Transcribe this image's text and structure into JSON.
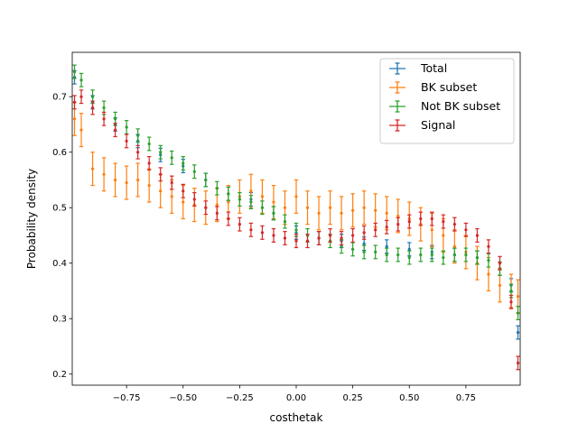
{
  "chart_data": {
    "type": "scatter",
    "title": "",
    "xlabel": "costhetak",
    "ylabel": "Probability density",
    "xlim": [
      -0.99,
      0.99
    ],
    "ylim": [
      0.18,
      0.78
    ],
    "xticks": [
      -0.75,
      -0.5,
      -0.25,
      0.0,
      0.25,
      0.5,
      0.75
    ],
    "xtick_labels": [
      "−0.75",
      "−0.50",
      "−0.25",
      "0.00",
      "0.25",
      "0.50",
      "0.75"
    ],
    "yticks": [
      0.2,
      0.3,
      0.4,
      0.5,
      0.6,
      0.7
    ],
    "ytick_labels": [
      "0.2",
      "0.3",
      "0.4",
      "0.5",
      "0.6",
      "0.7"
    ],
    "grid": false,
    "legend_position": "top-right",
    "error_bars": true,
    "x_bin_halfwidth": 0.005,
    "series": [
      {
        "name": "Total",
        "color": "#1f77b4",
        "x": [
          -0.98,
          -0.9,
          -0.8,
          -0.7,
          -0.6,
          -0.5,
          -0.4,
          -0.3,
          -0.2,
          -0.1,
          0.0,
          0.1,
          0.2,
          0.3,
          0.4,
          0.5,
          0.6,
          0.7,
          0.8,
          0.9,
          0.95,
          0.98
        ],
        "y": [
          0.735,
          0.69,
          0.65,
          0.62,
          0.595,
          0.575,
          0.55,
          0.525,
          0.515,
          0.49,
          0.455,
          0.445,
          0.44,
          0.435,
          0.43,
          0.425,
          0.42,
          0.415,
          0.41,
          0.39,
          0.36,
          0.275
        ],
        "err": [
          0.012,
          0.012,
          0.012,
          0.012,
          0.012,
          0.012,
          0.012,
          0.012,
          0.012,
          0.012,
          0.012,
          0.012,
          0.012,
          0.012,
          0.012,
          0.012,
          0.012,
          0.012,
          0.012,
          0.012,
          0.012,
          0.012
        ]
      },
      {
        "name": "BK subset",
        "color": "#ff7f0e",
        "x": [
          -0.98,
          -0.95,
          -0.9,
          -0.85,
          -0.8,
          -0.75,
          -0.7,
          -0.65,
          -0.6,
          -0.55,
          -0.5,
          -0.45,
          -0.4,
          -0.35,
          -0.3,
          -0.25,
          -0.2,
          -0.15,
          -0.1,
          -0.05,
          0.0,
          0.05,
          0.1,
          0.15,
          0.2,
          0.25,
          0.3,
          0.35,
          0.4,
          0.45,
          0.5,
          0.55,
          0.6,
          0.65,
          0.7,
          0.75,
          0.8,
          0.85,
          0.9,
          0.95,
          0.98
        ],
        "y": [
          0.66,
          0.64,
          0.57,
          0.56,
          0.55,
          0.545,
          0.55,
          0.54,
          0.53,
          0.52,
          0.51,
          0.505,
          0.5,
          0.505,
          0.51,
          0.52,
          0.53,
          0.52,
          0.51,
          0.5,
          0.52,
          0.5,
          0.49,
          0.5,
          0.49,
          0.495,
          0.5,
          0.495,
          0.49,
          0.485,
          0.48,
          0.47,
          0.46,
          0.45,
          0.43,
          0.42,
          0.4,
          0.38,
          0.36,
          0.35,
          0.34
        ],
        "err": [
          0.03,
          0.03,
          0.03,
          0.03,
          0.03,
          0.03,
          0.03,
          0.03,
          0.03,
          0.03,
          0.03,
          0.03,
          0.03,
          0.03,
          0.03,
          0.03,
          0.03,
          0.03,
          0.03,
          0.03,
          0.03,
          0.03,
          0.03,
          0.03,
          0.03,
          0.03,
          0.03,
          0.03,
          0.03,
          0.03,
          0.03,
          0.03,
          0.03,
          0.03,
          0.03,
          0.03,
          0.03,
          0.03,
          0.03,
          0.03,
          0.03
        ]
      },
      {
        "name": "Not BK subset",
        "color": "#2ca02c",
        "x": [
          -0.98,
          -0.95,
          -0.9,
          -0.85,
          -0.8,
          -0.75,
          -0.7,
          -0.65,
          -0.6,
          -0.55,
          -0.5,
          -0.45,
          -0.4,
          -0.35,
          -0.3,
          -0.25,
          -0.2,
          -0.15,
          -0.1,
          -0.05,
          0.0,
          0.05,
          0.1,
          0.15,
          0.2,
          0.25,
          0.3,
          0.35,
          0.4,
          0.45,
          0.5,
          0.55,
          0.6,
          0.65,
          0.7,
          0.75,
          0.8,
          0.85,
          0.9,
          0.95,
          0.98
        ],
        "y": [
          0.745,
          0.73,
          0.7,
          0.68,
          0.66,
          0.645,
          0.63,
          0.615,
          0.6,
          0.59,
          0.58,
          0.565,
          0.55,
          0.535,
          0.525,
          0.515,
          0.51,
          0.5,
          0.49,
          0.475,
          0.46,
          0.45,
          0.445,
          0.44,
          0.43,
          0.425,
          0.42,
          0.42,
          0.415,
          0.415,
          0.41,
          0.415,
          0.415,
          0.41,
          0.415,
          0.415,
          0.41,
          0.405,
          0.39,
          0.35,
          0.31
        ],
        "err": [
          0.012,
          0.012,
          0.012,
          0.012,
          0.012,
          0.012,
          0.012,
          0.012,
          0.012,
          0.012,
          0.012,
          0.012,
          0.012,
          0.012,
          0.012,
          0.012,
          0.012,
          0.012,
          0.012,
          0.012,
          0.012,
          0.012,
          0.012,
          0.012,
          0.012,
          0.012,
          0.012,
          0.012,
          0.012,
          0.012,
          0.012,
          0.012,
          0.012,
          0.012,
          0.012,
          0.012,
          0.012,
          0.012,
          0.012,
          0.012,
          0.012
        ]
      },
      {
        "name": "Signal",
        "color": "#d62728",
        "x": [
          -0.98,
          -0.95,
          -0.9,
          -0.85,
          -0.8,
          -0.75,
          -0.7,
          -0.65,
          -0.6,
          -0.55,
          -0.5,
          -0.45,
          -0.4,
          -0.35,
          -0.3,
          -0.25,
          -0.2,
          -0.15,
          -0.1,
          -0.05,
          0.0,
          0.05,
          0.1,
          0.15,
          0.2,
          0.25,
          0.3,
          0.35,
          0.4,
          0.45,
          0.5,
          0.55,
          0.6,
          0.65,
          0.7,
          0.75,
          0.8,
          0.85,
          0.9,
          0.95,
          0.98
        ],
        "y": [
          0.69,
          0.7,
          0.68,
          0.66,
          0.64,
          0.62,
          0.6,
          0.58,
          0.56,
          0.545,
          0.53,
          0.515,
          0.5,
          0.49,
          0.48,
          0.47,
          0.46,
          0.455,
          0.45,
          0.445,
          0.44,
          0.44,
          0.445,
          0.45,
          0.445,
          0.45,
          0.455,
          0.46,
          0.465,
          0.47,
          0.475,
          0.48,
          0.48,
          0.475,
          0.47,
          0.46,
          0.45,
          0.43,
          0.4,
          0.33,
          0.22
        ],
        "err": [
          0.012,
          0.012,
          0.012,
          0.012,
          0.012,
          0.012,
          0.012,
          0.012,
          0.012,
          0.012,
          0.012,
          0.012,
          0.012,
          0.012,
          0.012,
          0.012,
          0.012,
          0.012,
          0.012,
          0.012,
          0.012,
          0.012,
          0.012,
          0.012,
          0.012,
          0.012,
          0.012,
          0.012,
          0.012,
          0.012,
          0.012,
          0.012,
          0.012,
          0.012,
          0.012,
          0.012,
          0.012,
          0.012,
          0.012,
          0.012,
          0.012
        ]
      }
    ]
  }
}
